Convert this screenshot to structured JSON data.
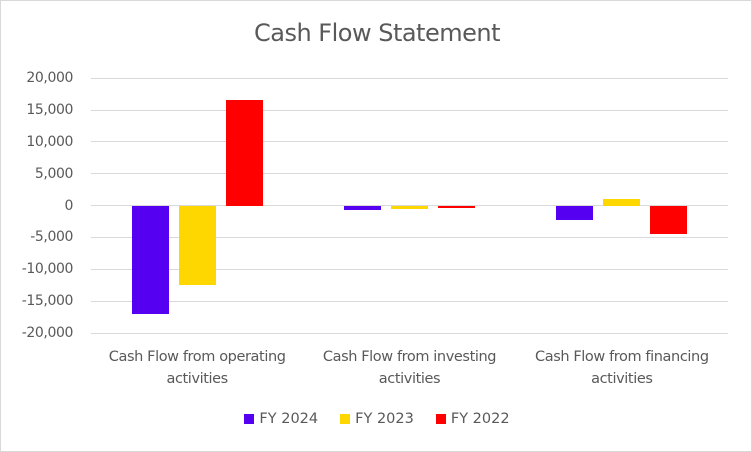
{
  "chart_data": {
    "type": "bar",
    "title": "Cash Flow Statement",
    "categories": [
      [
        "Cash Flow from operating",
        "activities"
      ],
      [
        "Cash Flow from investing",
        "activities"
      ],
      [
        "Cash Flow from financing",
        "activities"
      ]
    ],
    "series": [
      {
        "name": "FY 2024",
        "color": "#5500f0",
        "values": [
          -17000,
          -750,
          -2300
        ]
      },
      {
        "name": "FY 2023",
        "color": "#ffd700",
        "values": [
          -12400,
          -600,
          1100
        ]
      },
      {
        "name": "FY 2022",
        "color": "#ff0000",
        "values": [
          16550,
          -400,
          -4400
        ]
      }
    ],
    "xlabel": "",
    "ylabel": "",
    "ylim": [
      -20000,
      20000
    ],
    "yticks": [
      "20,000",
      "15,000",
      "10,000",
      "5,000",
      "0",
      "-5,000",
      "-10,000",
      "-15,000",
      "-20,000"
    ],
    "ytick_values": [
      20000,
      15000,
      10000,
      5000,
      0,
      -5000,
      -10000,
      -15000,
      -20000
    ],
    "grid": true,
    "legend_position": "bottom"
  }
}
